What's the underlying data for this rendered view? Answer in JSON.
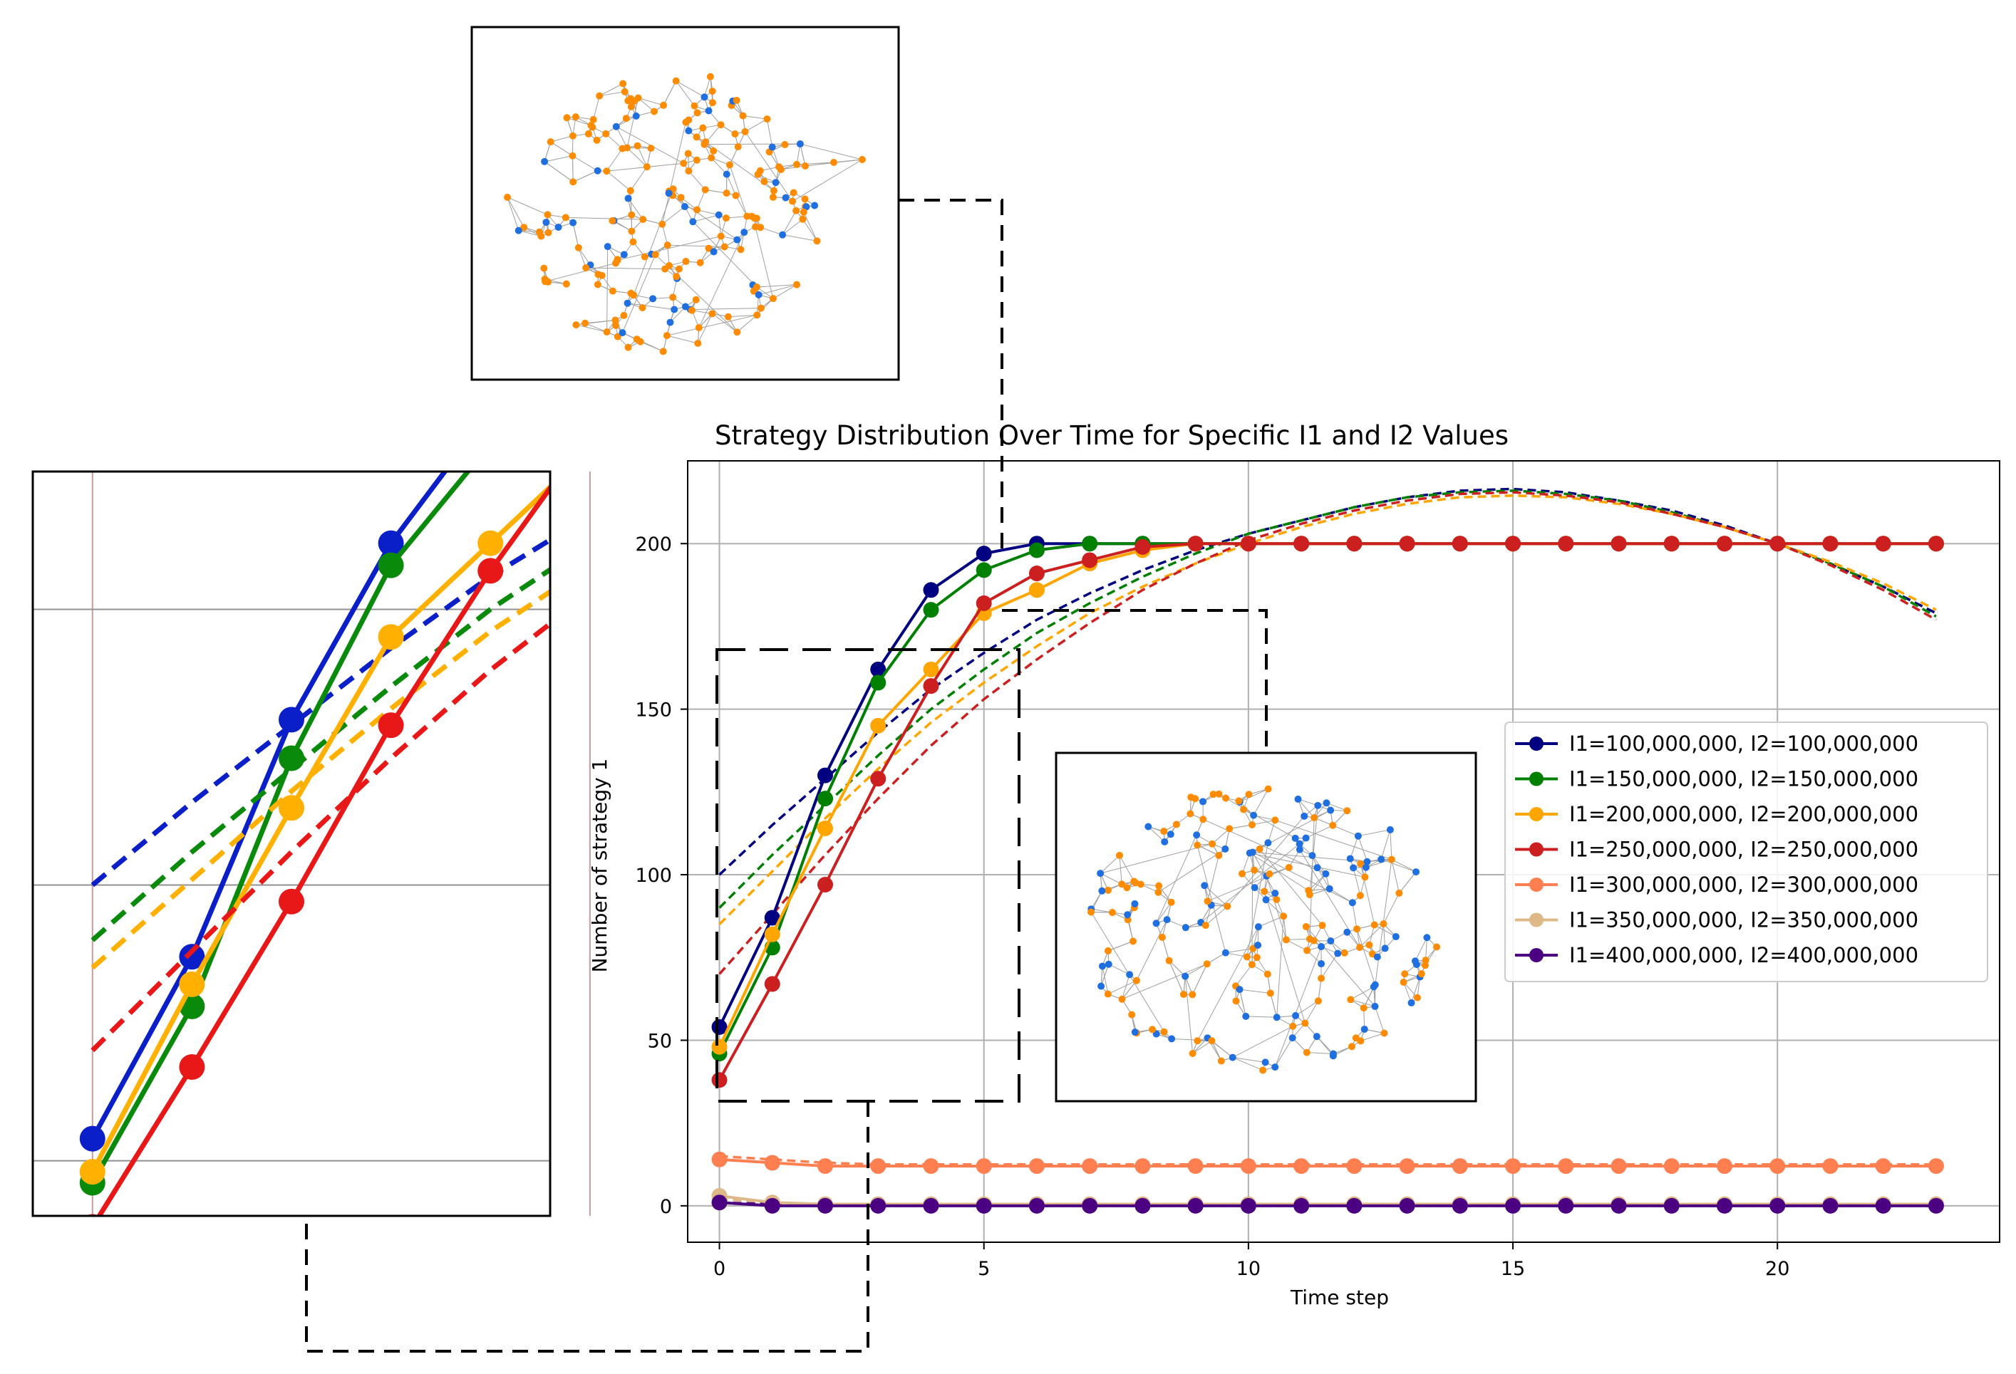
{
  "chart_data": {
    "type": "line",
    "title": "Strategy Distribution Over Time for Specific I1 and I2 Values",
    "xlabel": "Time step",
    "ylabel": "Number of strategy 1",
    "xlim": [
      -0.6,
      24.2
    ],
    "ylim": [
      -11,
      225
    ],
    "xticks": [
      0,
      5,
      10,
      15,
      20
    ],
    "yticks": [
      0,
      50,
      100,
      150,
      200
    ],
    "grid": true,
    "legend_position": "center-right",
    "x": [
      0,
      1,
      2,
      3,
      4,
      5,
      6,
      7,
      8,
      9,
      10,
      11,
      12,
      13,
      14,
      15,
      16,
      17,
      18,
      19,
      20,
      21,
      22,
      23
    ],
    "series": [
      {
        "name": "I1=100,000,000, I2=100,000,000",
        "color": "#000080",
        "values": [
          54,
          87,
          130,
          162,
          186,
          197,
          200,
          200,
          200,
          200,
          200,
          200,
          200,
          200,
          200,
          200,
          200,
          200,
          200,
          200,
          200,
          200,
          200,
          200
        ],
        "fit": [
          100,
          115,
          129,
          143,
          156,
          167,
          177,
          185,
          192,
          198,
          203,
          207,
          211,
          214,
          216,
          216.5,
          215.5,
          213,
          210,
          205.5,
          200,
          194,
          187,
          179
        ]
      },
      {
        "name": "I1=150,000,000, I2=150,000,000",
        "color": "#008000",
        "values": [
          46,
          78,
          123,
          158,
          180,
          192,
          198,
          200,
          200,
          200,
          200,
          200,
          200,
          200,
          200,
          200,
          200,
          200,
          200,
          200,
          200,
          200,
          200,
          200
        ],
        "fit": [
          90,
          106,
          121,
          136,
          150,
          162,
          173,
          182,
          190,
          197,
          203,
          207,
          211,
          214,
          215.5,
          216,
          215,
          213,
          209.5,
          205,
          200,
          194,
          187,
          178
        ]
      },
      {
        "name": "I1=200,000,000, I2=200,000,000",
        "color": "#ffa500",
        "values": [
          48,
          82,
          114,
          145,
          162,
          179,
          186,
          194,
          198,
          200,
          200,
          200,
          200,
          200,
          200,
          200,
          200,
          200,
          200,
          200,
          200,
          200,
          200,
          200
        ],
        "fit": [
          85,
          101,
          117,
          132,
          146,
          158,
          169,
          179,
          187,
          194,
          200,
          205,
          209,
          212,
          214,
          214.5,
          214,
          212,
          209,
          205,
          200,
          194.5,
          188,
          180
        ]
      },
      {
        "name": "I1=250,000,000, I2=250,000,000",
        "color": "#cc1f1f",
        "values": [
          38,
          67,
          97,
          129,
          157,
          182,
          191,
          195,
          199,
          200,
          200,
          200,
          200,
          200,
          200,
          200,
          200,
          200,
          200,
          200,
          200,
          200,
          200,
          200
        ],
        "fit": [
          70,
          88,
          106,
          123,
          139,
          153,
          165,
          176,
          186,
          194,
          201,
          206,
          210,
          213,
          215,
          215.5,
          214.5,
          212.5,
          209,
          205,
          200,
          193.5,
          186,
          177
        ]
      },
      {
        "name": "I1=300,000,000, I2=300,000,000",
        "color": "#ff7f50",
        "values": [
          14,
          13,
          12,
          12,
          12,
          12,
          12,
          12,
          12,
          12,
          12,
          12,
          12,
          12,
          12,
          12,
          12,
          12,
          12,
          12,
          12,
          12,
          12,
          12
        ],
        "fit": [
          15,
          14,
          13,
          12.5,
          12.5,
          12.5,
          12.5,
          12.5,
          12.5,
          12.5,
          12.5,
          12.5,
          12.5,
          12.5,
          12.5,
          12.5,
          12.5,
          12.5,
          12.5,
          12.5,
          12.5,
          12.5,
          12.5,
          12.5
        ]
      },
      {
        "name": "I1=350,000,000, I2=350,000,000",
        "color": "#deb887",
        "values": [
          3,
          1,
          0.5,
          0.5,
          0.5,
          0.5,
          0.5,
          0.5,
          0.5,
          0.5,
          0.5,
          0.5,
          0.5,
          0.5,
          0.5,
          0.5,
          0.5,
          0.5,
          0.5,
          0.5,
          0.5,
          0.5,
          0.5,
          0.5
        ],
        "fit": [
          2,
          1,
          0.5,
          0.5,
          0.5,
          0.5,
          0.5,
          0.5,
          0.5,
          0.5,
          0.5,
          0.5,
          0.5,
          0.5,
          0.5,
          0.5,
          0.5,
          0.5,
          0.5,
          0.5,
          0.5,
          0.5,
          0.5,
          0.5
        ]
      },
      {
        "name": "I1=400,000,000, I2=400,000,000",
        "color": "#4b0082",
        "values": [
          1,
          0,
          0,
          0,
          0,
          0,
          0,
          0,
          0,
          0,
          0,
          0,
          0,
          0,
          0,
          0,
          0,
          0,
          0,
          0,
          0,
          0,
          0,
          0
        ],
        "fit": [
          1,
          0.5,
          0,
          0,
          0,
          0,
          0,
          0,
          0,
          0,
          0,
          0,
          0,
          0,
          0,
          0,
          0,
          0,
          0,
          0,
          0,
          0,
          0,
          0
        ]
      }
    ],
    "zoom_inset": {
      "description": "magnified view of time steps 0–5, values 40–170",
      "xlim": [
        -0.6,
        4.6
      ],
      "ylim": [
        40,
        175
      ],
      "series_indices": [
        0,
        1,
        2,
        3
      ]
    }
  },
  "colors": {
    "network_blue": "#1f6fe0",
    "network_orange": "#ff8c00",
    "network_edge": "#a0a0a0",
    "grid": "#b0b0b0"
  }
}
